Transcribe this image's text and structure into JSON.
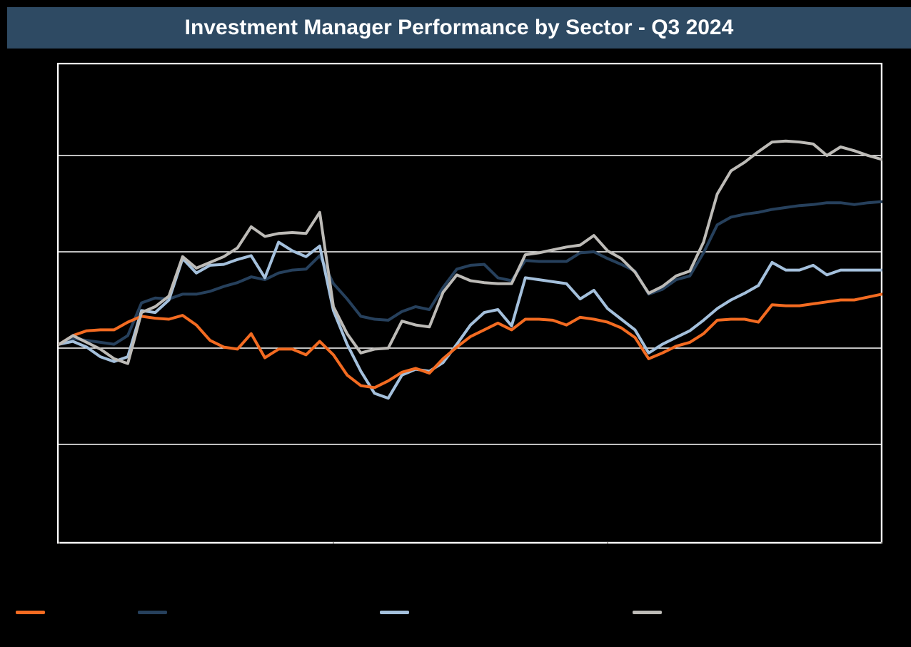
{
  "title_bar": {
    "text": "Investment Manager Performance by Sector - Q3 2024",
    "bg_color": "#2E4A63",
    "text_color": "#FFFFFF"
  },
  "canvas": {
    "bg_color": "#000000"
  },
  "chart_data": {
    "type": "line",
    "title": "Investment Manager Performance by Sector - Q3 2024",
    "xlabel": "",
    "ylabel": "",
    "axis_tick_labels_visible": false,
    "x_unit": "trading-day index (Q3 2024)",
    "x_range": [
      0,
      60
    ],
    "x_ticks_days": [
      0,
      20,
      40,
      60
    ],
    "y_unit": "cumulative return, percent (estimated; gridline spacing = 10)",
    "ylim_pct": [
      -20.3,
      29.6
    ],
    "gridlines_pct": [
      20,
      10,
      0,
      -10
    ],
    "grid_on": true,
    "grid_color": "#FFFFFF",
    "plot_border_color": "#FFFFFF",
    "tick_color": "#B0AEAB",
    "legend_position": "bottom",
    "series": [
      {
        "name": "navy",
        "color": "#26405C",
        "values": [
          0.4,
          1.0,
          0.8,
          0.6,
          0.4,
          1.3,
          4.7,
          5.2,
          5.1,
          5.6,
          5.6,
          5.9,
          6.4,
          6.8,
          7.4,
          7.1,
          7.8,
          8.1,
          8.2,
          9.6,
          6.7,
          5.1,
          3.3,
          3.0,
          2.9,
          3.8,
          4.3,
          4.0,
          6.3,
          8.2,
          8.6,
          8.7,
          7.3,
          7.0,
          9.1,
          9.0,
          9.0,
          9.0,
          9.9,
          10.0,
          9.3,
          8.7,
          8.0,
          5.6,
          6.1,
          7.1,
          7.5,
          9.9,
          12.8,
          13.6,
          13.9,
          14.1,
          14.4,
          14.6,
          14.8,
          14.9,
          15.1,
          15.1,
          14.9,
          15.1,
          15.2
        ]
      },
      {
        "name": "light-blue",
        "color": "#A4C0DC",
        "values": [
          0.4,
          0.7,
          0.1,
          -0.9,
          -1.4,
          -0.9,
          3.9,
          3.7,
          5.0,
          9.3,
          7.8,
          8.6,
          8.7,
          9.2,
          9.6,
          7.3,
          11.0,
          10.1,
          9.5,
          10.6,
          3.9,
          0.4,
          -2.4,
          -4.7,
          -5.2,
          -2.8,
          -2.2,
          -2.4,
          -1.5,
          0.4,
          2.4,
          3.7,
          4.0,
          2.3,
          7.3,
          7.1,
          6.9,
          6.7,
          5.1,
          6.0,
          4.1,
          3.0,
          1.9,
          -0.5,
          0.4,
          1.1,
          1.8,
          2.9,
          4.1,
          5.0,
          5.7,
          6.5,
          8.9,
          8.1,
          8.1,
          8.6,
          7.6,
          8.1,
          8.1,
          8.1,
          8.1
        ]
      },
      {
        "name": "orange",
        "color": "#F36B21",
        "values": [
          0.4,
          1.3,
          1.8,
          1.9,
          1.9,
          2.7,
          3.3,
          3.1,
          3.0,
          3.4,
          2.4,
          0.8,
          0.1,
          -0.1,
          1.5,
          -1.0,
          -0.1,
          -0.1,
          -0.7,
          0.7,
          -0.7,
          -2.8,
          -3.9,
          -4.1,
          -3.4,
          -2.5,
          -2.1,
          -2.6,
          -1.1,
          0.1,
          1.2,
          1.9,
          2.6,
          1.9,
          3.0,
          3.0,
          2.9,
          2.4,
          3.2,
          3.0,
          2.7,
          2.1,
          1.1,
          -1.1,
          -0.5,
          0.2,
          0.6,
          1.5,
          2.9,
          3.0,
          3.0,
          2.7,
          4.5,
          4.4,
          4.4,
          4.6,
          4.8,
          5.0,
          5.0,
          5.3,
          5.6
        ]
      },
      {
        "name": "gray",
        "color": "#BDBBB7",
        "values": [
          0.4,
          1.3,
          0.6,
          -0.1,
          -1.1,
          -1.6,
          3.7,
          4.3,
          5.4,
          9.5,
          8.3,
          8.9,
          9.5,
          10.4,
          12.6,
          11.6,
          11.9,
          12.0,
          11.9,
          14.1,
          4.3,
          1.5,
          -0.5,
          -0.1,
          0.0,
          2.8,
          2.4,
          2.2,
          5.8,
          7.6,
          7.0,
          6.8,
          6.7,
          6.7,
          9.7,
          9.9,
          10.2,
          10.5,
          10.7,
          11.7,
          10.1,
          9.3,
          7.9,
          5.7,
          6.4,
          7.5,
          8.0,
          11.0,
          16.0,
          18.4,
          19.3,
          20.4,
          21.4,
          21.5,
          21.4,
          21.2,
          20.0,
          20.9,
          20.5,
          20.0,
          19.6
        ]
      }
    ],
    "legend": {
      "items": [
        {
          "label": "",
          "color": "#F36B21"
        },
        {
          "label": "",
          "color": "#26405C"
        },
        {
          "label": "",
          "color": "#A4C0DC"
        },
        {
          "label": "",
          "color": "#BDBBB7"
        }
      ]
    }
  }
}
